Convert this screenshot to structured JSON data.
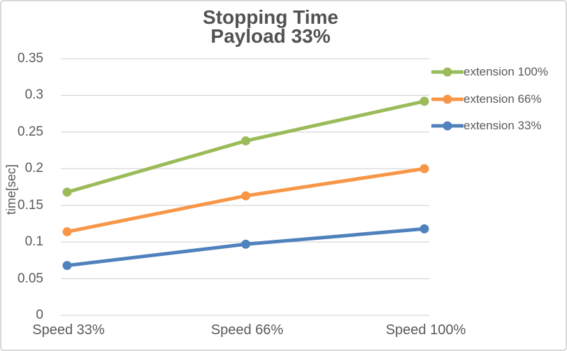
{
  "frame": {
    "background": "#FFFFFF",
    "border_color": "#D9D9D9"
  },
  "chart_data": {
    "type": "line",
    "title_line1": "Stopping Time",
    "title_line2": "Payload 33%",
    "ylabel": "time[sec]",
    "xlabel": "",
    "categories": [
      "Speed 33%",
      "Speed 66%",
      "Speed 100%"
    ],
    "series": [
      {
        "name": "extension 100%",
        "color": "#9BBB59",
        "values": [
          0.168,
          0.238,
          0.292
        ]
      },
      {
        "name": "extension 66%",
        "color": "#F79646",
        "values": [
          0.114,
          0.163,
          0.2
        ]
      },
      {
        "name": "extension 33%",
        "color": "#4F81BD",
        "values": [
          0.068,
          0.097,
          0.118
        ]
      }
    ],
    "ylim": [
      0,
      0.35
    ],
    "ytick_step": 0.05,
    "yticks": [
      "0",
      "0.05",
      "0.1",
      "0.15",
      "0.2",
      "0.25",
      "0.3",
      "0.35"
    ],
    "grid": "horizontal",
    "gridline_color": "#D9D9D9",
    "text_color": "#595959",
    "marker": "circle",
    "legend_position": "right"
  }
}
